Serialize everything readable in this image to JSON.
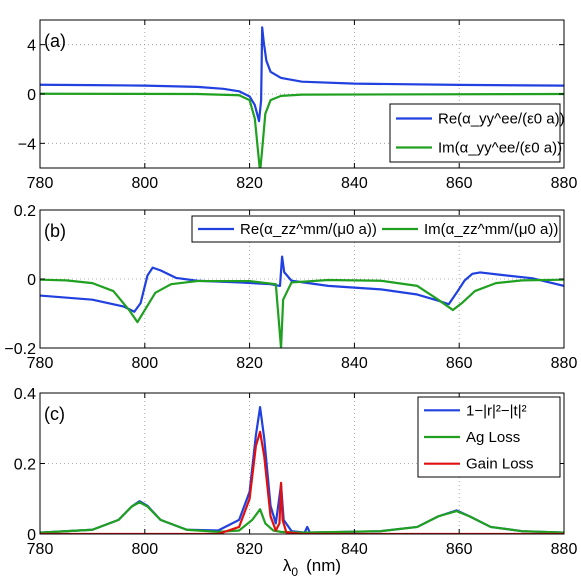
{
  "figure": {
    "xlabel": "λ0 (nm)",
    "xlabel_main": "λ",
    "xlabel_sub": "0",
    "xlabel_unit": "(nm)"
  },
  "chart_data": [
    {
      "id": "a",
      "type": "line",
      "panel_label": "(a)",
      "xlim": [
        780,
        880
      ],
      "ylim": [
        -6,
        6
      ],
      "xticks": [
        780,
        800,
        820,
        840,
        860,
        880
      ],
      "yticks": [
        -4,
        0,
        4
      ],
      "ytick_labels": [
        "−4",
        "0",
        "4"
      ],
      "grid": true,
      "legend_placement": "bottom-right",
      "series": [
        {
          "name": "Re(α_yy^ee/(ε0 a))",
          "color": "#2040e0",
          "points": [
            [
              780,
              0.75
            ],
            [
              790,
              0.72
            ],
            [
              800,
              0.68
            ],
            [
              810,
              0.58
            ],
            [
              815,
              0.42
            ],
            [
              818,
              0.22
            ],
            [
              820,
              -0.2
            ],
            [
              821,
              -0.9
            ],
            [
              821.8,
              -2.2
            ],
            [
              822.2,
              -0.5
            ],
            [
              822.4,
              5.4
            ],
            [
              822.7,
              4.2
            ],
            [
              823.2,
              2.7
            ],
            [
              824,
              1.8
            ],
            [
              826,
              1.3
            ],
            [
              830,
              1.0
            ],
            [
              840,
              0.84
            ],
            [
              860,
              0.74
            ],
            [
              880,
              0.68
            ]
          ]
        },
        {
          "name": "Im(α_yy^ee/(ε0 a))",
          "color": "#20a020",
          "points": [
            [
              780,
              0.02
            ],
            [
              810,
              0.0
            ],
            [
              818,
              -0.1
            ],
            [
              820,
              -0.5
            ],
            [
              821,
              -2.0
            ],
            [
              821.6,
              -4.6
            ],
            [
              822,
              -6.3
            ],
            [
              822.4,
              -4.5
            ],
            [
              823,
              -1.6
            ],
            [
              824,
              -0.5
            ],
            [
              826,
              -0.15
            ],
            [
              830,
              -0.05
            ],
            [
              880,
              0.0
            ]
          ]
        }
      ]
    },
    {
      "id": "b",
      "type": "line",
      "panel_label": "(b)",
      "xlim": [
        780,
        880
      ],
      "ylim": [
        -0.2,
        0.2
      ],
      "xticks": [
        780,
        800,
        820,
        840,
        860,
        880
      ],
      "yticks": [
        -0.2,
        0,
        0.2
      ],
      "ytick_labels": [
        "−0.2",
        "0",
        "0.2"
      ],
      "grid": true,
      "legend_placement": "top-right",
      "series": [
        {
          "name": "Re(α_zz^mm/(μ0 a))",
          "color": "#2040e0",
          "points": [
            [
              780,
              -0.048
            ],
            [
              790,
              -0.06
            ],
            [
              796,
              -0.08
            ],
            [
              798,
              -0.095
            ],
            [
              799.2,
              -0.07
            ],
            [
              800.5,
              0.01
            ],
            [
              801.5,
              0.033
            ],
            [
              803,
              0.025
            ],
            [
              806,
              0.003
            ],
            [
              810,
              -0.005
            ],
            [
              818,
              -0.01
            ],
            [
              824,
              -0.015
            ],
            [
              825.8,
              -0.02
            ],
            [
              826.2,
              0.065
            ],
            [
              826.6,
              0.02
            ],
            [
              828,
              -0.005
            ],
            [
              835,
              -0.02
            ],
            [
              845,
              -0.03
            ],
            [
              852,
              -0.045
            ],
            [
              856,
              -0.063
            ],
            [
              858,
              -0.073
            ],
            [
              859.5,
              -0.04
            ],
            [
              861,
              -0.005
            ],
            [
              862.5,
              0.015
            ],
            [
              864,
              0.019
            ],
            [
              868,
              0.012
            ],
            [
              874,
              0.002
            ],
            [
              880,
              -0.02
            ]
          ]
        },
        {
          "name": "Im(α_zz^mm/(μ0 a))",
          "color": "#20a020",
          "points": [
            [
              780,
              -0.002
            ],
            [
              785,
              -0.004
            ],
            [
              790,
              -0.012
            ],
            [
              794,
              -0.035
            ],
            [
              797,
              -0.09
            ],
            [
              798.6,
              -0.125
            ],
            [
              800,
              -0.09
            ],
            [
              802,
              -0.04
            ],
            [
              805,
              -0.015
            ],
            [
              810,
              -0.006
            ],
            [
              820,
              -0.006
            ],
            [
              825,
              -0.015
            ],
            [
              826,
              -0.2
            ],
            [
              826.4,
              -0.06
            ],
            [
              828,
              -0.01
            ],
            [
              835,
              -0.003
            ],
            [
              845,
              -0.005
            ],
            [
              852,
              -0.02
            ],
            [
              856,
              -0.06
            ],
            [
              858.8,
              -0.09
            ],
            [
              860.5,
              -0.07
            ],
            [
              863,
              -0.035
            ],
            [
              867,
              -0.012
            ],
            [
              872,
              -0.004
            ],
            [
              880,
              -0.002
            ]
          ]
        }
      ]
    },
    {
      "id": "c",
      "type": "line",
      "panel_label": "(c)",
      "xlim": [
        780,
        880
      ],
      "ylim": [
        0,
        0.4
      ],
      "xticks": [
        780,
        800,
        820,
        840,
        860,
        880
      ],
      "yticks": [
        0,
        0.2,
        0.4
      ],
      "ytick_labels": [
        "0",
        "0.2",
        "0.4"
      ],
      "grid": true,
      "legend_placement": "top-right",
      "series": [
        {
          "name": "1−|r|²−|t|²",
          "color": "#2040e0",
          "points": [
            [
              780,
              0.004
            ],
            [
              790,
              0.012
            ],
            [
              795,
              0.04
            ],
            [
              797.5,
              0.078
            ],
            [
              799,
              0.093
            ],
            [
              800.5,
              0.08
            ],
            [
              803,
              0.04
            ],
            [
              808,
              0.012
            ],
            [
              814,
              0.01
            ],
            [
              818,
              0.04
            ],
            [
              820,
              0.12
            ],
            [
              821.2,
              0.28
            ],
            [
              822,
              0.36
            ],
            [
              822.8,
              0.27
            ],
            [
              824,
              0.08
            ],
            [
              825,
              0.03
            ],
            [
              826,
              0.14
            ],
            [
              826.5,
              0.04
            ],
            [
              828,
              0.008
            ],
            [
              830.5,
              0.004
            ],
            [
              831,
              0.02
            ],
            [
              831.5,
              0.004
            ],
            [
              845,
              0.008
            ],
            [
              852,
              0.02
            ],
            [
              856,
              0.05
            ],
            [
              859.5,
              0.067
            ],
            [
              862,
              0.05
            ],
            [
              866,
              0.02
            ],
            [
              872,
              0.008
            ],
            [
              880,
              0.004
            ]
          ]
        },
        {
          "name": "Ag Loss",
          "color": "#20a020",
          "points": [
            [
              780,
              0.004
            ],
            [
              790,
              0.012
            ],
            [
              795,
              0.04
            ],
            [
              797.5,
              0.078
            ],
            [
              799,
              0.09
            ],
            [
              800.5,
              0.078
            ],
            [
              803,
              0.04
            ],
            [
              808,
              0.012
            ],
            [
              814,
              0.006
            ],
            [
              818,
              0.01
            ],
            [
              820.5,
              0.04
            ],
            [
              822,
              0.07
            ],
            [
              823,
              0.03
            ],
            [
              824.5,
              0.01
            ],
            [
              826,
              0.006
            ],
            [
              830,
              0.004
            ],
            [
              845,
              0.008
            ],
            [
              852,
              0.02
            ],
            [
              856,
              0.05
            ],
            [
              859.5,
              0.065
            ],
            [
              862,
              0.05
            ],
            [
              866,
              0.02
            ],
            [
              872,
              0.008
            ],
            [
              880,
              0.004
            ]
          ]
        },
        {
          "name": "Gain Loss",
          "color": "#e01010",
          "points": [
            [
              780,
              0.0
            ],
            [
              814,
              0.0
            ],
            [
              818,
              0.02
            ],
            [
              820,
              0.1
            ],
            [
              821.2,
              0.25
            ],
            [
              822,
              0.29
            ],
            [
              822.8,
              0.22
            ],
            [
              824,
              0.05
            ],
            [
              825,
              0.01
            ],
            [
              825.7,
              0.03
            ],
            [
              826,
              0.145
            ],
            [
              826.3,
              0.04
            ],
            [
              827,
              0.005
            ],
            [
              830,
              0.0
            ],
            [
              880,
              0.0
            ]
          ]
        }
      ]
    }
  ]
}
